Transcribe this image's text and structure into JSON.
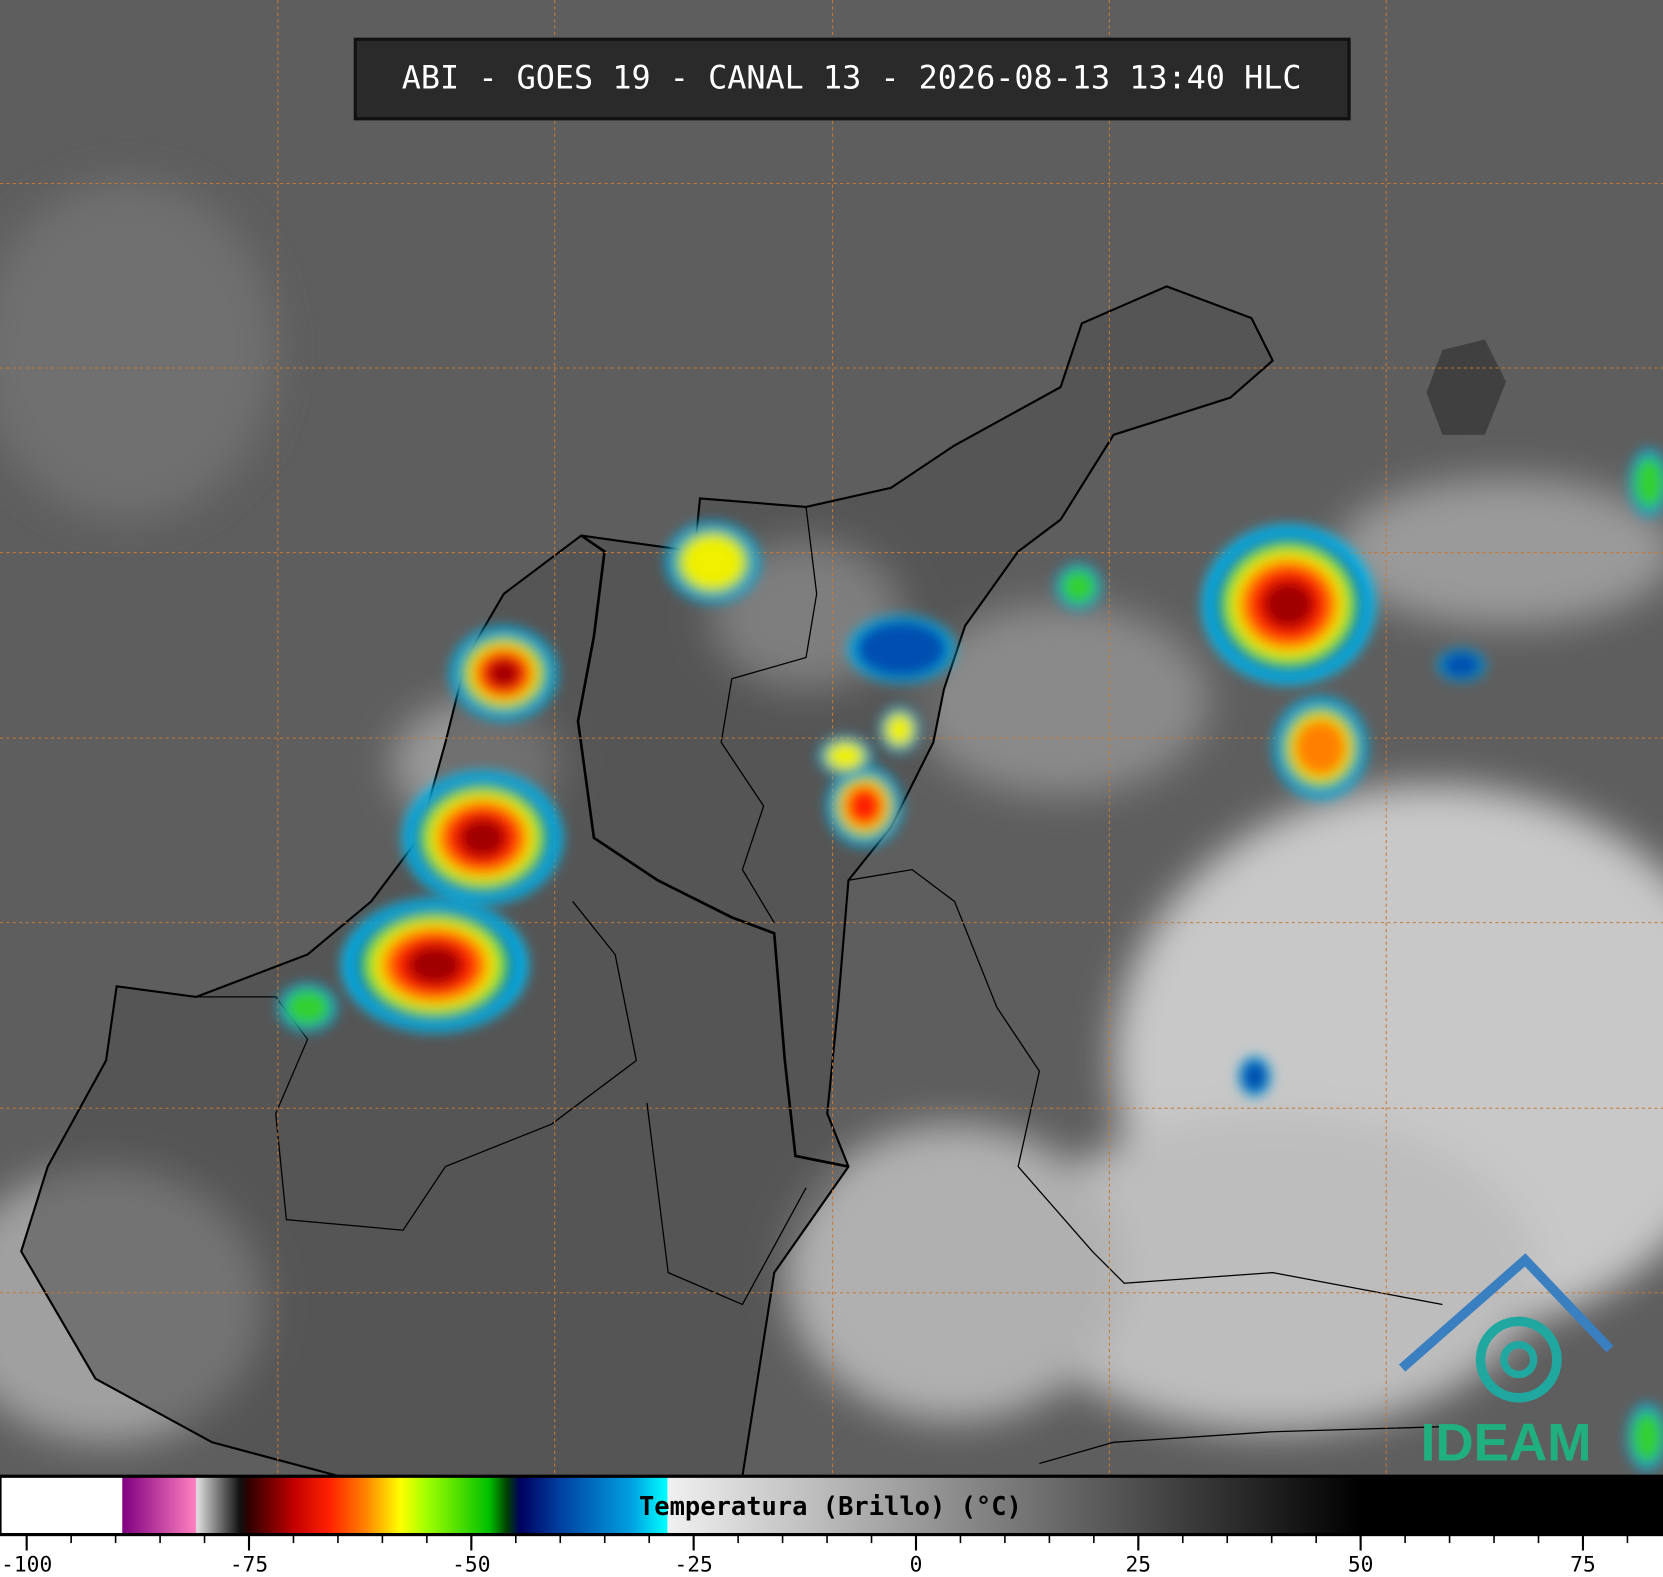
{
  "header": {
    "title": "ABI - GOES 19 - CANAL 13 - 2026-08-13 13:40 HLC"
  },
  "chart_data": {
    "type": "colorbar",
    "label": "Temperatura (Brillo) (°C)",
    "xlim": [
      -103,
      84
    ],
    "xticks": [
      -100,
      -75,
      -50,
      -25,
      0,
      25,
      50,
      75
    ],
    "colorscale": [
      {
        "value": -103,
        "color": "#ffffff"
      },
      {
        "value": -89.3,
        "color": "#ffffff"
      },
      {
        "value": -89.2,
        "color": "#800080"
      },
      {
        "value": -81,
        "color": "#ff80c0"
      },
      {
        "value": -80.9,
        "color": "#e0e0e0"
      },
      {
        "value": -76,
        "color": "#101010"
      },
      {
        "value": -75,
        "color": "#300000"
      },
      {
        "value": -70,
        "color": "#c00000"
      },
      {
        "value": -66,
        "color": "#ff2000"
      },
      {
        "value": -62,
        "color": "#ff8000"
      },
      {
        "value": -58,
        "color": "#ffff00"
      },
      {
        "value": -55,
        "color": "#a0ff00"
      },
      {
        "value": -48,
        "color": "#00c000"
      },
      {
        "value": -46,
        "color": "#004000"
      },
      {
        "value": -44.5,
        "color": "#000060"
      },
      {
        "value": -40,
        "color": "#0040a0"
      },
      {
        "value": -32,
        "color": "#00a0e0"
      },
      {
        "value": -28,
        "color": "#00ffff"
      },
      {
        "value": -27.9,
        "color": "#f0f0f0"
      },
      {
        "value": 50,
        "color": "#000000"
      },
      {
        "value": 84,
        "color": "#000000"
      }
    ]
  },
  "logo": {
    "text": "IDEAM"
  }
}
